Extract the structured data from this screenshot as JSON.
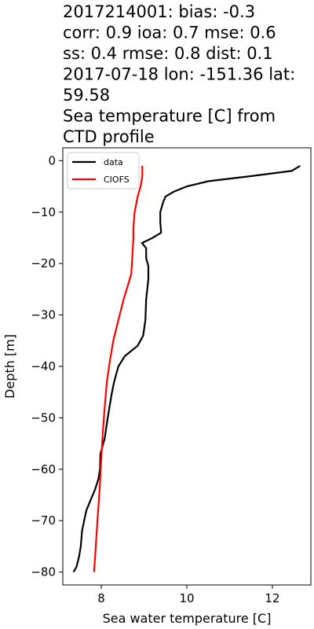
{
  "chart_data": {
    "type": "line",
    "title_lines": [
      "2017214001: bias: -0.3",
      "corr: 0.9  ioa: 0.7  mse: 0.6",
      "ss: 0.4  rmse: 0.8  dist: 0.1",
      "2017-07-18 lon: -151.36 lat:",
      "59.58",
      "Sea temperature [C] from",
      "CTD profile"
    ],
    "xlabel": "Sea water temperature [C]",
    "ylabel": "Depth [m]",
    "xlim": [
      7.1,
      12.9
    ],
    "ylim": [
      -82.5,
      2.5
    ],
    "xticks": [
      8,
      10,
      12
    ],
    "yticks": [
      0,
      -10,
      -20,
      -30,
      -40,
      -50,
      -60,
      -70,
      -80
    ],
    "grid": false,
    "legend": {
      "position": "top-left"
    },
    "series": [
      {
        "name": "data",
        "color": "#000000",
        "points": [
          [
            12.65,
            -1.0
          ],
          [
            12.45,
            -2.0
          ],
          [
            11.5,
            -3.0
          ],
          [
            10.5,
            -4.0
          ],
          [
            10.0,
            -5.0
          ],
          [
            9.7,
            -6.0
          ],
          [
            9.5,
            -7.0
          ],
          [
            9.45,
            -8.0
          ],
          [
            9.38,
            -10.0
          ],
          [
            9.38,
            -12.0
          ],
          [
            9.4,
            -14.0
          ],
          [
            9.2,
            -15.0
          ],
          [
            9.08,
            -15.5
          ],
          [
            8.95,
            -16.0
          ],
          [
            9.05,
            -17.0
          ],
          [
            9.05,
            -19.0
          ],
          [
            9.1,
            -20.5
          ],
          [
            9.1,
            -23.0
          ],
          [
            9.05,
            -27.0
          ],
          [
            9.03,
            -31.0
          ],
          [
            8.98,
            -34.0
          ],
          [
            8.85,
            -36.0
          ],
          [
            8.55,
            -38.0
          ],
          [
            8.4,
            -40.0
          ],
          [
            8.3,
            -43.0
          ],
          [
            8.25,
            -45.0
          ],
          [
            8.22,
            -46.5
          ],
          [
            8.15,
            -50.0
          ],
          [
            8.08,
            -54.0
          ],
          [
            7.98,
            -57.0
          ],
          [
            7.97,
            -60.0
          ],
          [
            7.93,
            -62.0
          ],
          [
            7.85,
            -64.0
          ],
          [
            7.75,
            -66.0
          ],
          [
            7.65,
            -68.0
          ],
          [
            7.6,
            -70.0
          ],
          [
            7.55,
            -72.0
          ],
          [
            7.52,
            -75.0
          ],
          [
            7.48,
            -77.0
          ],
          [
            7.42,
            -79.0
          ],
          [
            7.35,
            -80.0
          ]
        ]
      },
      {
        "name": "CIOFS",
        "color": "#ff0000",
        "points": [
          [
            8.96,
            -1.0
          ],
          [
            8.96,
            -3.0
          ],
          [
            8.92,
            -5.0
          ],
          [
            8.85,
            -7.0
          ],
          [
            8.78,
            -10.0
          ],
          [
            8.75,
            -13.0
          ],
          [
            8.75,
            -15.0
          ],
          [
            8.73,
            -18.0
          ],
          [
            8.7,
            -22.0
          ],
          [
            8.65,
            -23.5
          ],
          [
            8.52,
            -27.0
          ],
          [
            8.4,
            -31.0
          ],
          [
            8.28,
            -35.0
          ],
          [
            8.2,
            -39.0
          ],
          [
            8.13,
            -43.0
          ],
          [
            8.09,
            -47.0
          ],
          [
            8.05,
            -51.0
          ],
          [
            8.02,
            -55.0
          ],
          [
            8.0,
            -58.0
          ],
          [
            7.96,
            -64.0
          ],
          [
            7.91,
            -70.0
          ],
          [
            7.87,
            -75.0
          ],
          [
            7.83,
            -80.0
          ]
        ]
      }
    ]
  }
}
